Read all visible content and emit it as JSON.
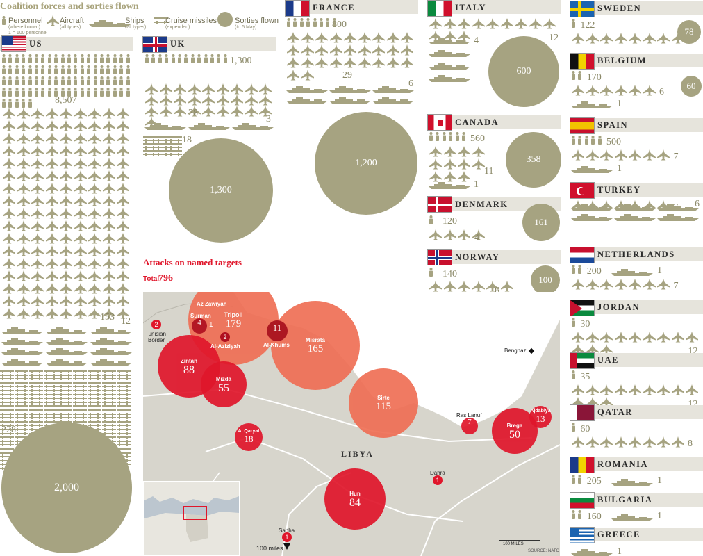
{
  "title": "Coalition forces and sorties flown",
  "legend": {
    "personnel": {
      "label": "Personnel",
      "sub": "(where known)",
      "note": "1 = 100 personnel"
    },
    "aircraft": {
      "label": "Aircraft",
      "sub": "(all types)"
    },
    "ships": {
      "label": "Ships",
      "sub": "(all types)"
    },
    "missiles": {
      "label": "Cruise missiles",
      "sub": "(expended)"
    },
    "sorties": {
      "label": "Sorties flown",
      "sub": "(to 5 May)"
    }
  },
  "colors": {
    "olive": "#a6a381",
    "band": "#e6e4dc",
    "red": "#e0162b",
    "orange": "#ef6f55",
    "land": "#d7d5cc",
    "sea": "#ffffff"
  },
  "chart_data": [
    {
      "type": "table",
      "title": "Coalition forces and sorties flown",
      "columns": [
        "country",
        "personnel",
        "aircraft",
        "ships",
        "cruise_missiles",
        "sorties"
      ],
      "countries": [
        {
          "name": "US",
          "personnel": "8,507",
          "aircraft": "153",
          "ships": "12",
          "missiles": "228",
          "sorties": "2,000"
        },
        {
          "name": "UK",
          "personnel": "1,300",
          "aircraft": "28",
          "ships": "3",
          "missiles": "18",
          "sorties": "1,300"
        },
        {
          "name": "FRANCE",
          "personnel": "800",
          "aircraft": "29",
          "ships": "6",
          "sorties": "1,200"
        },
        {
          "name": "ITALY",
          "aircraft": "12",
          "ships": "4",
          "sorties": "600"
        },
        {
          "name": "CANADA",
          "personnel": "560",
          "aircraft": "11",
          "ships": "1",
          "sorties": "358"
        },
        {
          "name": "DENMARK",
          "personnel": "120",
          "aircraft": "4",
          "sorties": "161"
        },
        {
          "name": "NORWAY",
          "personnel": "140",
          "aircraft": "6",
          "sorties": "100"
        },
        {
          "name": "SWEDEN",
          "personnel": "122",
          "aircraft": "8",
          "sorties": "78"
        },
        {
          "name": "BELGIUM",
          "personnel": "170",
          "aircraft": "6",
          "ships": "1",
          "sorties": "60"
        },
        {
          "name": "SPAIN",
          "personnel": "500",
          "aircraft": "7",
          "ships": "1"
        },
        {
          "name": "TURKEY",
          "aircraft": "7",
          "ships": "6"
        },
        {
          "name": "NETHERLANDS",
          "personnel": "200",
          "aircraft": "7",
          "ships": "1"
        },
        {
          "name": "JORDAN",
          "personnel": "30",
          "aircraft": "12"
        },
        {
          "name": "UAE",
          "personnel": "35",
          "aircraft": "12"
        },
        {
          "name": "QATAR",
          "personnel": "60",
          "aircraft": "8"
        },
        {
          "name": "ROMANIA",
          "personnel": "205",
          "ships": "1"
        },
        {
          "name": "BULGARIA",
          "personnel": "160",
          "ships": "1"
        },
        {
          "name": "GREECE",
          "ships": "1"
        }
      ]
    },
    {
      "type": "scatter",
      "title": "Attacks on named targets",
      "total_label": "Total",
      "total": "796",
      "targets": [
        {
          "name": "Tripoli",
          "value": 179
        },
        {
          "name": "Misrata",
          "value": 165
        },
        {
          "name": "Sirte",
          "value": 115
        },
        {
          "name": "Zintan",
          "value": 88
        },
        {
          "name": "Hun",
          "value": 84
        },
        {
          "name": "Mizda",
          "value": 55
        },
        {
          "name": "Brega",
          "value": 50
        },
        {
          "name": "Al Qaryat",
          "value": 18
        },
        {
          "name": "Ajdabiya",
          "value": 13
        },
        {
          "name": "Al-Khums",
          "value": 11
        },
        {
          "name": "Ras Lanuf",
          "value": 7
        },
        {
          "name": "Surman",
          "value": 4
        },
        {
          "name": "Al-Aziziyah",
          "value": 2
        },
        {
          "name": "Tunisian Border",
          "value": 2
        },
        {
          "name": "Az Zawiyah",
          "value": 1
        },
        {
          "name": "Dahra",
          "value": 1
        },
        {
          "name": "Sabha",
          "value": 1
        }
      ],
      "labels": {
        "benghazi": "Benghazi",
        "libya": "LIBYA",
        "scale": "100 MILES",
        "offmap": "100 miles",
        "tunisian": "Tunisian",
        "border": "Border"
      }
    }
  ],
  "source": "SOURCE: NATO"
}
